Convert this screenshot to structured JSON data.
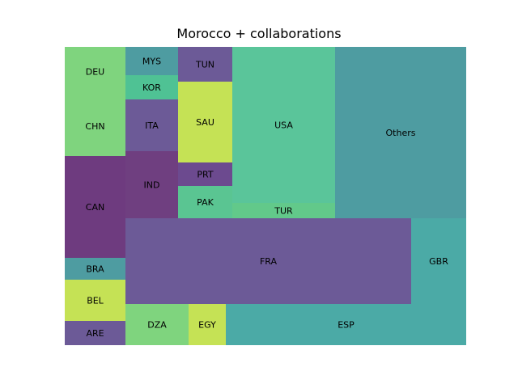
{
  "chart_data": {
    "type": "treemap",
    "title": "Morocco + collaborations",
    "colors": {
      "teal_dark": "#4e9ca1",
      "teal_light": "#4baaa6",
      "green_lime": "#c5e255",
      "green_light": "#7fd47e",
      "green_mint": "#5ac592",
      "green_aqua": "#5fc58e",
      "purple": "#6c5a97",
      "purple_dark": "#6e3b7f",
      "purple_mid": "#6f3f80"
    },
    "tiles": [
      {
        "label": "DEU",
        "color": "#7fd47e"
      },
      {
        "label": "CHN",
        "color": "#7fd47e"
      },
      {
        "label": "CAN",
        "color": "#6e3b7f"
      },
      {
        "label": "BRA",
        "color": "#4e9ca1"
      },
      {
        "label": "BEL",
        "color": "#c5e255"
      },
      {
        "label": "ARE",
        "color": "#6c5a97"
      },
      {
        "label": "MYS",
        "color": "#4e9ca1"
      },
      {
        "label": "KOR",
        "color": "#4fc294"
      },
      {
        "label": "ITA",
        "color": "#6c5a97"
      },
      {
        "label": "IND",
        "color": "#6f3f80"
      },
      {
        "label": "TUN",
        "color": "#6c5a97"
      },
      {
        "label": "SAU",
        "color": "#c5e255"
      },
      {
        "label": "PRT",
        "color": "#6c4a8f"
      },
      {
        "label": "PAK",
        "color": "#5ac592"
      },
      {
        "label": "USA",
        "color": "#5ac59a"
      },
      {
        "label": "TUR",
        "color": "#62c98a"
      },
      {
        "label": "Others",
        "color": "#4e9ca1"
      },
      {
        "label": "FRA",
        "color": "#6c5a97"
      },
      {
        "label": "GBR",
        "color": "#4baaa6"
      },
      {
        "label": "DZA",
        "color": "#7fd47e"
      },
      {
        "label": "EGY",
        "color": "#c5e255"
      },
      {
        "label": "ESP",
        "color": "#4baaa6"
      }
    ]
  }
}
